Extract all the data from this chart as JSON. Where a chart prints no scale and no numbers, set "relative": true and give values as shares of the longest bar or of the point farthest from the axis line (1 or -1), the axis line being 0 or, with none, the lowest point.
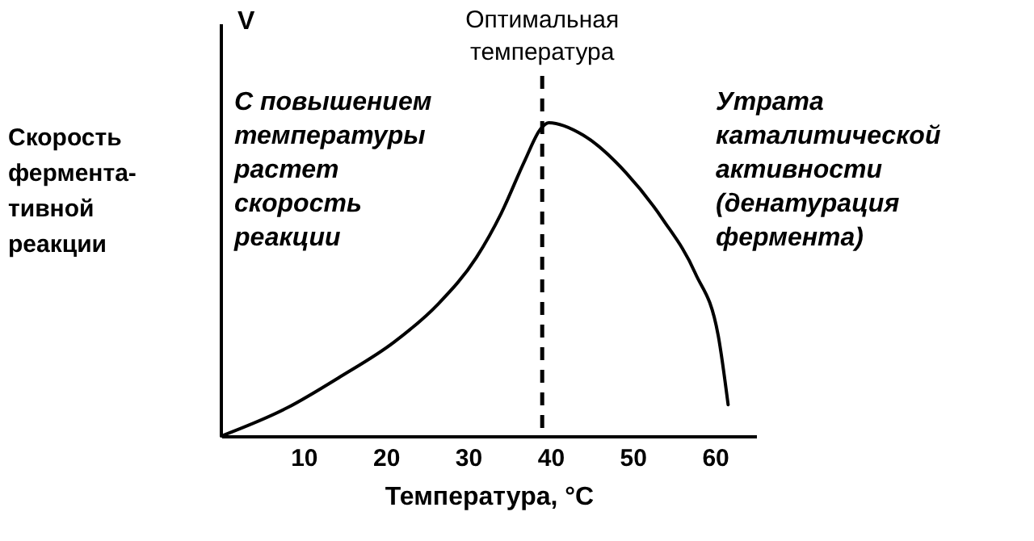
{
  "chart_data": {
    "type": "line",
    "relative": true,
    "xlabel": "Температура, °C",
    "ylabel": "Скорость\nфермента-\nтивной\nреакции",
    "x": [
      0,
      8,
      14.5,
      21,
      26.3,
      31,
      34,
      36.9,
      38.8,
      39.8,
      44,
      49.2,
      53.7,
      57.6,
      60.4,
      61.6
    ],
    "series": [
      {
        "color": "#000000",
        "values": [
          0,
          0.09,
          0.19,
          0.3,
          0.42,
          0.57,
          0.71,
          0.88,
          0.98,
          1,
          0.96,
          0.84,
          0.69,
          0.52,
          0.32,
          0.1
        ]
      }
    ],
    "xlim": [
      0,
      65
    ],
    "xticks": [
      10,
      20,
      30,
      40,
      50,
      60
    ],
    "ref_lines": [
      {
        "axis": "x",
        "value": 39,
        "label": "Оптимальная температура",
        "line_style": "dashed",
        "color": "#000000"
      }
    ],
    "annotations": [
      "V",
      "С повышением\nтемпературы\nрастет\nскорость\nреакции",
      "Утрата\nкаталитической\nактивности\n(денатурация\nфермента)"
    ],
    "marker": "none",
    "line_style": "solid",
    "grid": false
  }
}
